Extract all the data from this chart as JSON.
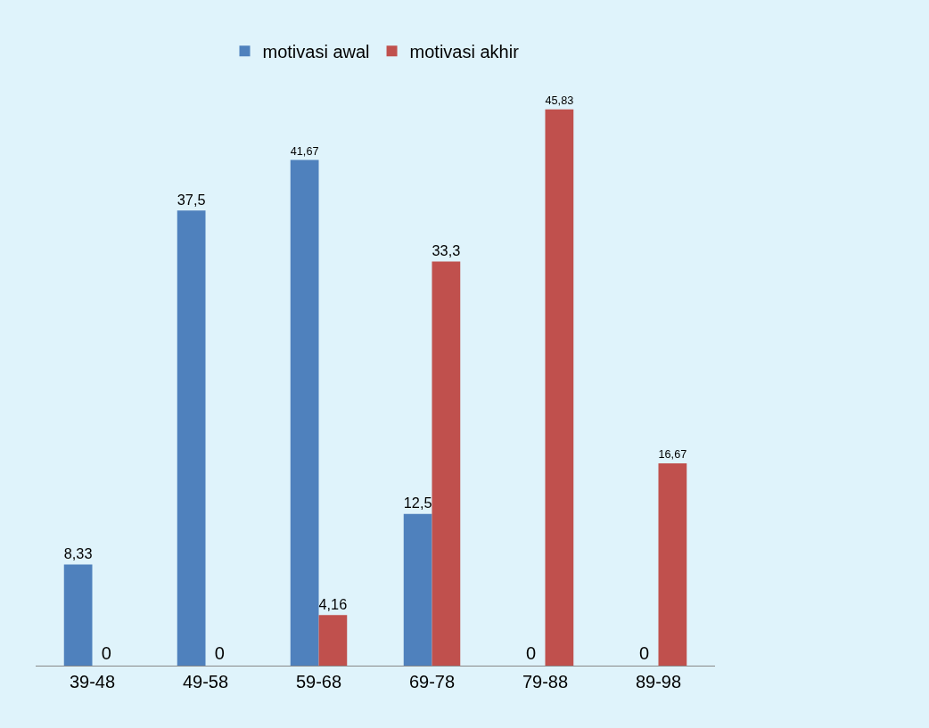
{
  "chart_data": {
    "type": "bar",
    "categories": [
      "39-48",
      "49-58",
      "59-68",
      "69-78",
      "79-88",
      "89-98"
    ],
    "series": [
      {
        "name": "motivasi awal",
        "color": "#4f81bd",
        "values": [
          8.33,
          37.5,
          41.67,
          12.5,
          0,
          0
        ],
        "value_labels": [
          "8,33",
          "37,5",
          "41,67",
          "12,5",
          "0",
          "0"
        ]
      },
      {
        "name": "motivasi akhir",
        "color": "#c0504d",
        "values": [
          0,
          0,
          4.16,
          33.3,
          45.83,
          16.67
        ],
        "value_labels": [
          "0",
          "0",
          "4,16",
          "33,3",
          "45,83",
          "16,67"
        ]
      }
    ],
    "legend": "top",
    "grid": false
  }
}
